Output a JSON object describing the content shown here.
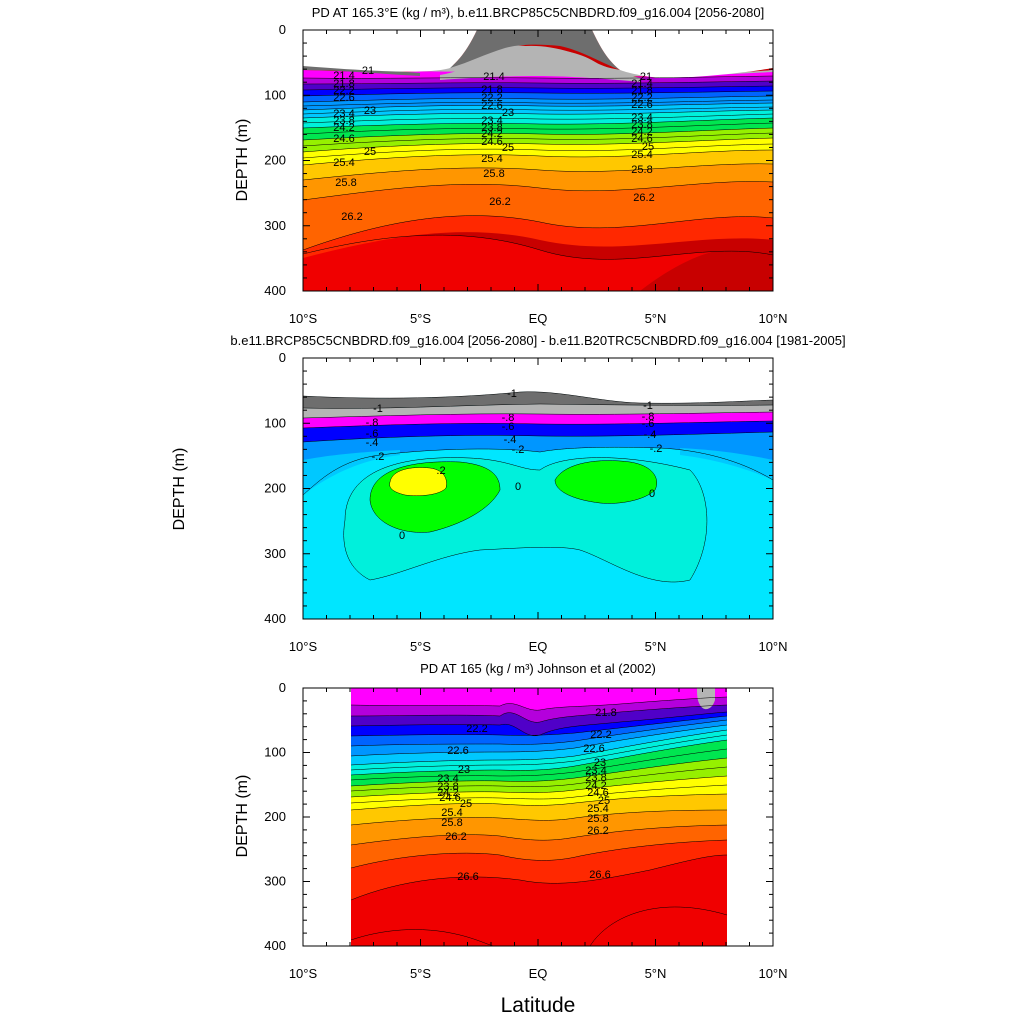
{
  "x_ticks": [
    "10°S",
    "5°S",
    "EQ",
    "5°N",
    "10°N"
  ],
  "y_ticks": [
    "0",
    "100",
    "200",
    "300",
    "400"
  ],
  "xlabel": "Latitude",
  "chart_data": [
    {
      "type": "heatmap",
      "title": "PD AT 165.3°E (kg / m³), b.e11.BRCP85C5CNBDRD.f09_g16.004 [2056-2080]",
      "ylabel": "DEPTH (m)",
      "xlim": [
        -10,
        10
      ],
      "ylim": [
        400,
        0
      ],
      "levels": [
        20.6,
        21,
        21.4,
        21.8,
        22.2,
        22.6,
        23,
        23.4,
        23.8,
        24.2,
        24.6,
        25,
        25.4,
        25.8,
        26.2,
        26.6,
        27
      ],
      "contour_labels": [
        "21",
        "21.4",
        "21.8",
        "22.2",
        "22.6",
        "23",
        "23.4",
        "23.8",
        "24.2",
        "24.6",
        "25",
        "25.4",
        "25.8",
        "26.2"
      ],
      "colors": [
        "#6e6e6e",
        "#b4b4b4",
        "#ff00ff",
        "#b400dc",
        "#5000c8",
        "#0000ff",
        "#0064ff",
        "#0096ff",
        "#00c8ff",
        "#00f0dc",
        "#00e650",
        "#96f000",
        "#ffff00",
        "#ffc800",
        "#ff9600",
        "#ff6400",
        "#ff2800",
        "#f00000",
        "#c80000"
      ]
    },
    {
      "type": "heatmap",
      "title": "b.e11.BRCP85C5CNBDRD.f09_g16.004 [2056-2080] - b.e11.B20TRC5CNBDRD.f09_g16.004 [1981-2005]",
      "ylabel": "DEPTH (m)",
      "xlim": [
        -10,
        10
      ],
      "ylim": [
        400,
        0
      ],
      "levels": [
        -1,
        -0.8,
        -0.6,
        -0.4,
        -0.2,
        0,
        0.2
      ],
      "contour_labels": [
        "-1",
        "-.8",
        "-.6",
        "-.4",
        "-.2",
        "0",
        ".2"
      ],
      "colors": [
        "#6e6e6e",
        "#b4b4b4",
        "#ff00ff",
        "#0000ff",
        "#0096ff",
        "#00e6ff",
        "#00f0dc",
        "#00ff00",
        "#ffff00"
      ]
    },
    {
      "type": "heatmap",
      "title": "PD AT 165 (kg / m³) Johnson et al (2002)",
      "ylabel": "DEPTH (m)",
      "xlim": [
        -10,
        10
      ],
      "ylim": [
        400,
        0
      ],
      "levels": [
        21.8,
        22.2,
        22.6,
        23,
        23.4,
        23.8,
        24.2,
        24.6,
        25,
        25.4,
        25.8,
        26.2,
        26.6
      ],
      "contour_labels": [
        "21.8",
        "22.2",
        "22.6",
        "23",
        "23.4",
        "23.8",
        "24.2",
        "24.6",
        "25",
        "25.4",
        "25.8",
        "26.2",
        "26.6"
      ],
      "colors": [
        "#ff00ff",
        "#b400dc",
        "#5000c8",
        "#0000ff",
        "#0064ff",
        "#0096ff",
        "#00c8ff",
        "#00f0dc",
        "#00e650",
        "#96f000",
        "#ffff00",
        "#ffc800",
        "#ff9600",
        "#ff6400",
        "#ff2800",
        "#f00000",
        "#c80000"
      ]
    }
  ]
}
